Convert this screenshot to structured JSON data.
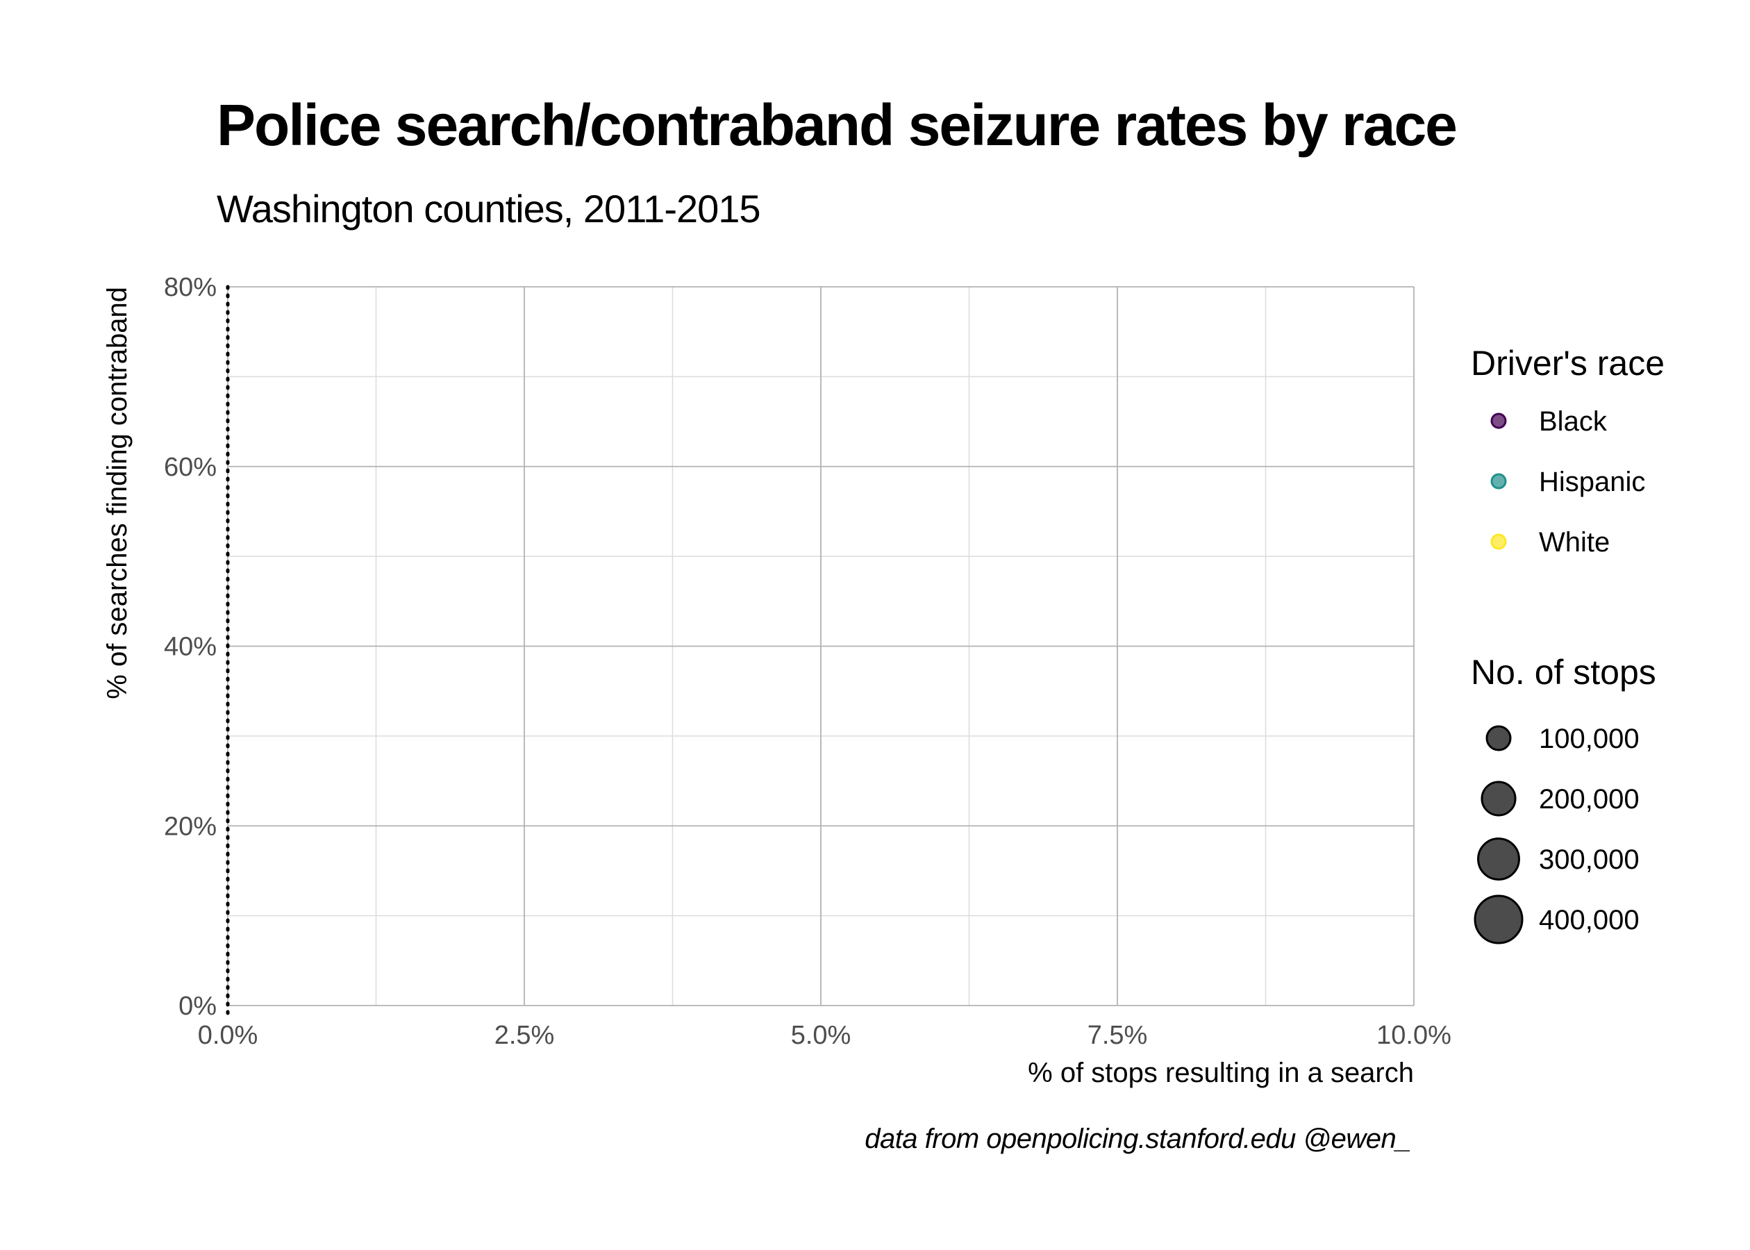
{
  "chart_data": {
    "type": "scatter",
    "title": "Police search/contraband seizure rates by race",
    "subtitle": "Washington counties, 2011-2015",
    "xlabel": "% of stops resulting in a search",
    "ylabel": "% of searches finding contraband",
    "xlim": [
      0,
      0.1
    ],
    "ylim": [
      0,
      0.8
    ],
    "x_ticks": [
      {
        "value": 0,
        "label": "0.0%"
      },
      {
        "value": 0.025,
        "label": "2.5%"
      },
      {
        "value": 0.05,
        "label": "5.0%"
      },
      {
        "value": 0.075,
        "label": "7.5%"
      },
      {
        "value": 0.1,
        "label": "10.0%"
      }
    ],
    "y_ticks": [
      {
        "value": 0,
        "label": "0%"
      },
      {
        "value": 0.2,
        "label": "20%"
      },
      {
        "value": 0.4,
        "label": "40%"
      },
      {
        "value": 0.6,
        "label": "60%"
      },
      {
        "value": 0.8,
        "label": "80%"
      }
    ],
    "grid": true,
    "reference_line": {
      "x": 0,
      "style": "dotted"
    },
    "series": [
      {
        "name": "Black",
        "color": "#440154",
        "points": []
      },
      {
        "name": "Hispanic",
        "color": "#21908C",
        "points": []
      },
      {
        "name": "White",
        "color": "#FDE725",
        "points": []
      }
    ],
    "legend_color": {
      "title": "Driver's race",
      "items": [
        {
          "label": "Black",
          "color": "#440154"
        },
        {
          "label": "Hispanic",
          "color": "#21908C"
        },
        {
          "label": "White",
          "color": "#FDE725"
        }
      ]
    },
    "legend_size": {
      "title": "No. of stops",
      "items": [
        {
          "label": "100,000",
          "value": 100000
        },
        {
          "label": "200,000",
          "value": 200000
        },
        {
          "label": "300,000",
          "value": 300000
        },
        {
          "label": "400,000",
          "value": 400000
        }
      ]
    },
    "legend_placement": "right",
    "caption": "data from openpolicing.stanford.edu      @ewen_"
  }
}
